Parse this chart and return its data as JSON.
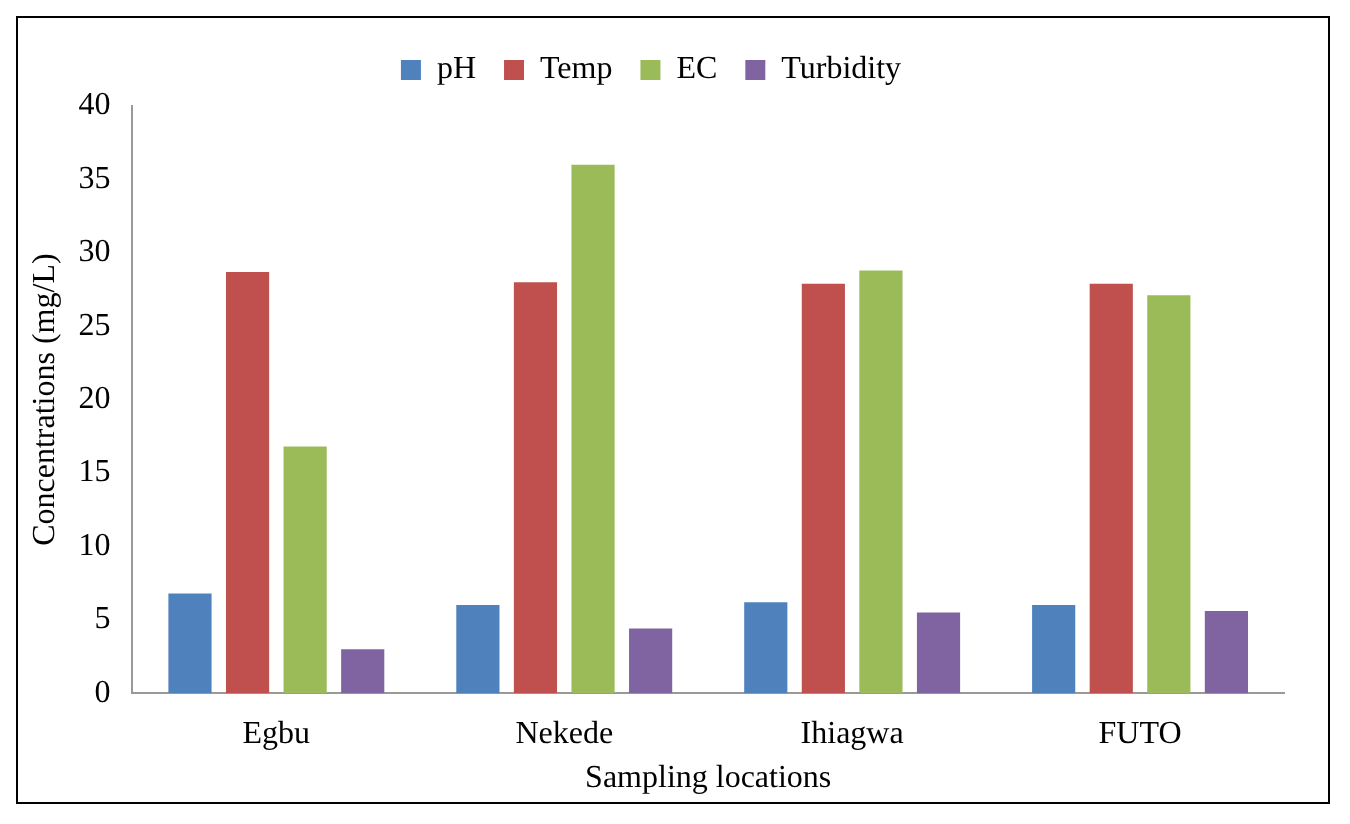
{
  "chart_data": {
    "type": "bar",
    "xlabel": "Sampling locations",
    "ylabel": "Concentrations (mg/L)",
    "categories": [
      "Egbu",
      "Nekede",
      "Ihiagwa",
      "FUTO"
    ],
    "series": [
      {
        "name": "pH",
        "color": "#4f81bd",
        "values": [
          6.8,
          6.0,
          6.2,
          6.0
        ]
      },
      {
        "name": "Temp",
        "color": "#c0504d",
        "values": [
          28.7,
          28.0,
          27.9,
          27.9
        ]
      },
      {
        "name": "EC",
        "color": "#9bbb59",
        "values": [
          16.8,
          36.0,
          28.8,
          27.1
        ]
      },
      {
        "name": "Turbidity",
        "color": "#8064a2",
        "values": [
          3.0,
          4.4,
          5.5,
          5.6
        ]
      }
    ],
    "ylim": [
      0,
      40
    ],
    "yticks": [
      0,
      5,
      10,
      15,
      20,
      25,
      30,
      35,
      40
    ],
    "grid": false,
    "legend": "top"
  }
}
